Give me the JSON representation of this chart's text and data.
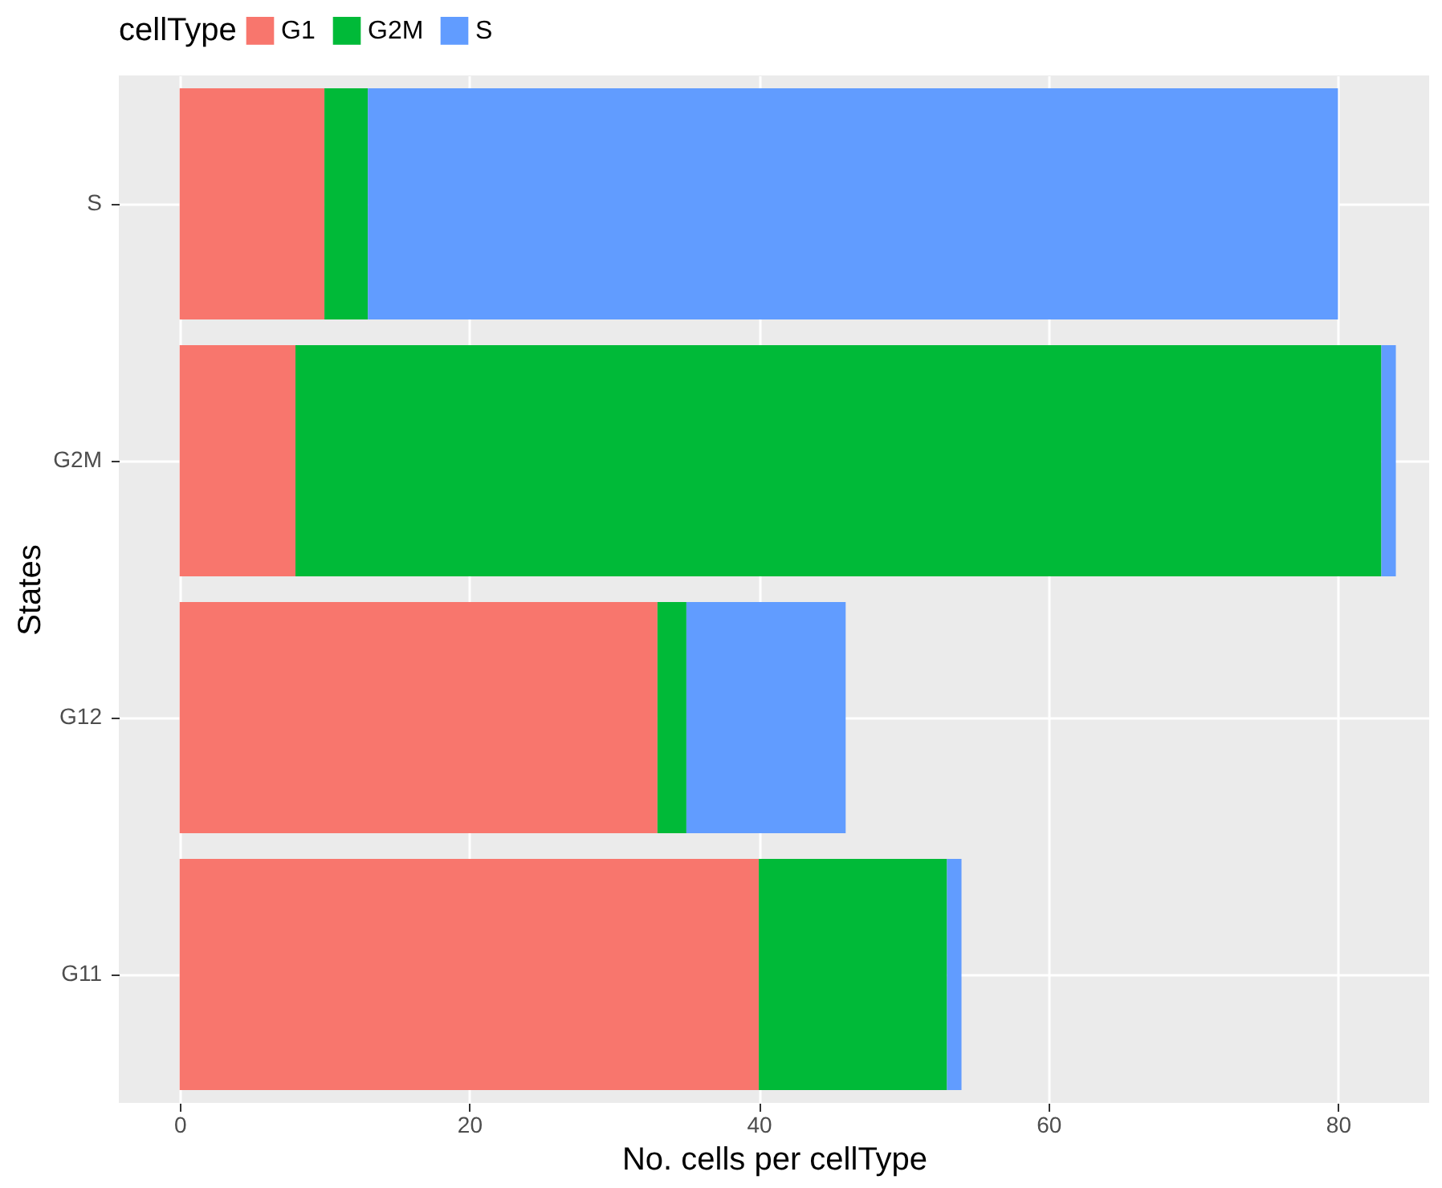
{
  "chart_data": {
    "type": "bar",
    "orientation": "horizontal",
    "stacked": true,
    "xlabel": "No. cells per cellType",
    "ylabel": "States",
    "legend_title": "cellType",
    "legend": "top",
    "grid": true,
    "categories": [
      "S",
      "G2M",
      "G12",
      "G11"
    ],
    "series": [
      {
        "name": "G1",
        "color": "#f8766d",
        "values": [
          10,
          8,
          33,
          40
        ]
      },
      {
        "name": "G2M",
        "color": "#00ba38",
        "values": [
          3,
          75,
          2,
          13
        ]
      },
      {
        "name": "S",
        "color": "#619cff",
        "values": [
          67,
          1,
          11,
          1
        ]
      }
    ],
    "xlim": [
      -4.2,
      86.3
    ],
    "xticks": [
      0,
      20,
      40,
      60,
      80
    ]
  }
}
